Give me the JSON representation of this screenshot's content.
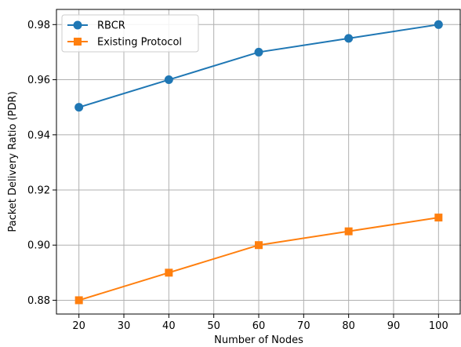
{
  "chart_data": {
    "type": "line",
    "title": "",
    "xlabel": "Number of Nodes",
    "ylabel": "Packet Delivery Ratio (PDR)",
    "xlim": [
      15,
      105
    ],
    "ylim": [
      0.875,
      0.9855
    ],
    "xticks": [
      20,
      30,
      40,
      50,
      60,
      70,
      80,
      90,
      100
    ],
    "yticks": [
      0.88,
      0.9,
      0.92,
      0.94,
      0.96,
      0.98
    ],
    "ytick_labels": [
      "0.88",
      "0.90",
      "0.92",
      "0.94",
      "0.96",
      "0.98"
    ],
    "grid": true,
    "legend_position": "top-left",
    "x": [
      20,
      40,
      60,
      80,
      100
    ],
    "series": [
      {
        "name": "RBCR",
        "values": [
          0.95,
          0.96,
          0.97,
          0.975,
          0.98
        ],
        "color": "#1f77b4",
        "marker": "circle"
      },
      {
        "name": "Existing Protocol",
        "values": [
          0.88,
          0.89,
          0.9,
          0.905,
          0.91
        ],
        "color": "#ff7f0e",
        "marker": "square"
      }
    ]
  }
}
